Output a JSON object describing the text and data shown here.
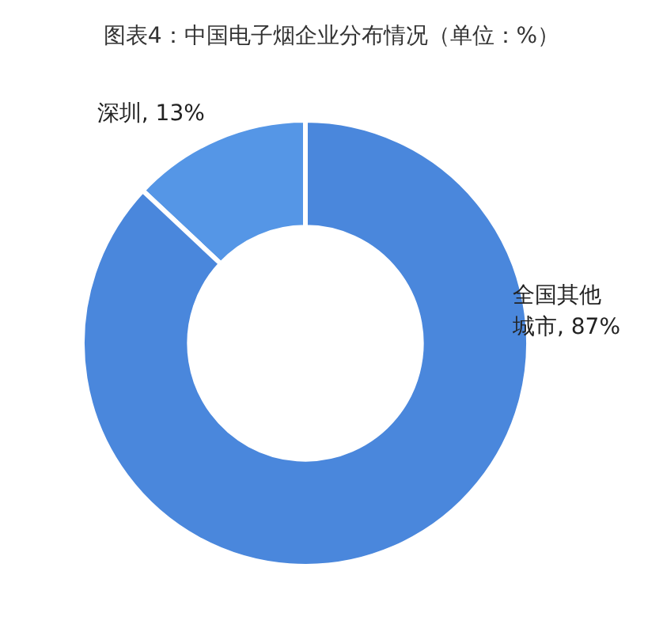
{
  "chart_data": {
    "type": "donut",
    "title": "图表4：中国电子烟企业分布情况（单位：%）",
    "categories": [
      "深圳",
      "全国其他城市"
    ],
    "values": [
      13,
      87
    ],
    "colors": [
      "#5596e6",
      "#4a87dc"
    ],
    "value_labels": [
      ", 13%",
      ", 87%"
    ]
  }
}
